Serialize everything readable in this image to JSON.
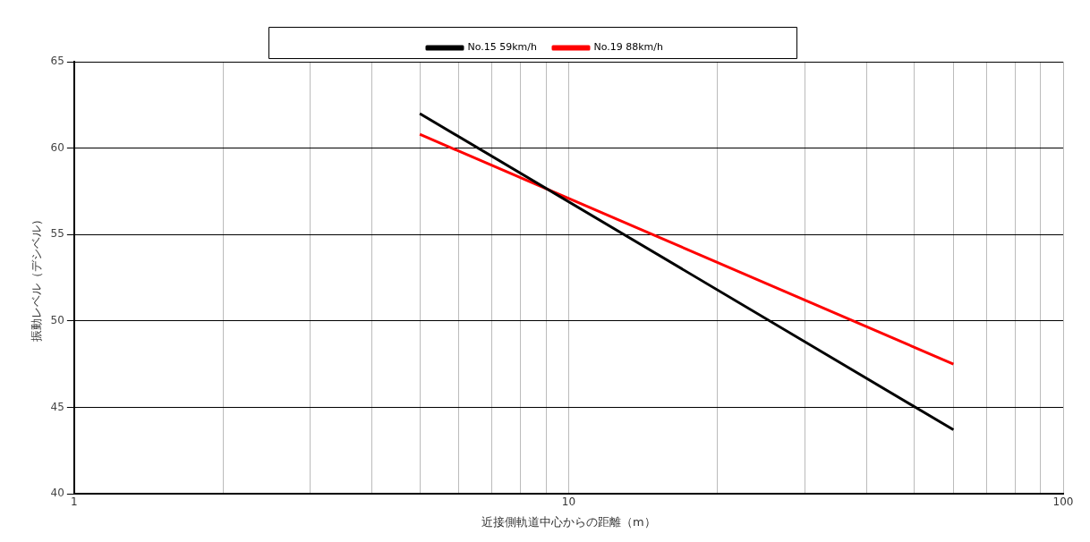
{
  "chart_data": {
    "type": "line",
    "xlabel": "近接側軌道中心からの距離（m）",
    "ylabel": "振動レベル（デシベル）",
    "series": [
      {
        "name": "No.15 59km/h",
        "color": "#000000",
        "values": [
          62,
          43.7
        ]
      },
      {
        "name": "No.19 88km/h",
        "color": "#ff0000",
        "values": [
          60.8,
          47.5
        ]
      }
    ],
    "x": [
      5,
      60
    ],
    "log": "x",
    "xlim": [
      1,
      100
    ],
    "xticks": [
      1,
      {
        "value": 2,
        "label": null
      },
      {
        "value": 3,
        "label": null
      },
      {
        "value": 4,
        "label": null
      },
      {
        "value": 5,
        "label": null
      },
      {
        "value": 6,
        "label": null
      },
      {
        "value": 7,
        "label": null
      },
      {
        "value": 8,
        "label": null
      },
      {
        "value": 9,
        "label": null
      },
      10,
      {
        "value": 20,
        "label": null
      },
      {
        "value": 30,
        "label": null
      },
      {
        "value": 40,
        "label": null
      },
      {
        "value": 50,
        "label": null
      },
      {
        "value": 60,
        "label": null
      },
      {
        "value": 70,
        "label": null
      },
      {
        "value": 80,
        "label": null
      },
      {
        "value": 90,
        "label": null
      },
      100
    ],
    "ylim": [
      40,
      65
    ],
    "yticks": [
      40,
      45,
      50,
      55,
      60,
      65
    ],
    "grid": true,
    "legend": "top",
    "marker": "none",
    "line_style": "solid"
  }
}
